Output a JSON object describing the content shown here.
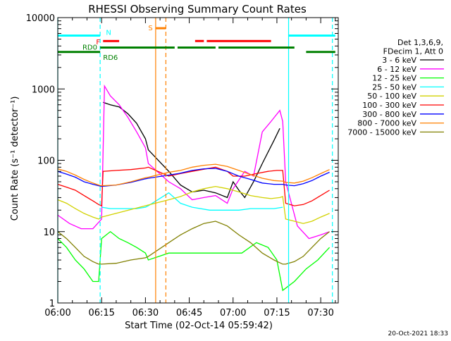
{
  "chart_data": {
    "type": "line",
    "title": "RHESSI Observing Summary Count Rates",
    "xlabel": "Start Time (02-Oct-14 05:59:42)",
    "ylabel": "Count Rate (s⁻¹ detector⁻¹)",
    "y_scale": "log",
    "ylim": [
      1,
      10000
    ],
    "xlim_min": [
      0,
      96
    ],
    "x_ticks": [
      {
        "t": 0,
        "label": "06:00"
      },
      {
        "t": 15,
        "label": "06:15"
      },
      {
        "t": 30,
        "label": "06:30"
      },
      {
        "t": 45,
        "label": "06:45"
      },
      {
        "t": 60,
        "label": "07:00"
      },
      {
        "t": 75,
        "label": "07:15"
      },
      {
        "t": 90,
        "label": "07:30"
      }
    ],
    "y_ticks": [
      {
        "v": 1,
        "label": "1"
      },
      {
        "v": 10,
        "label": "10"
      },
      {
        "v": 100,
        "label": "100"
      },
      {
        "v": 1000,
        "label": "1000"
      },
      {
        "v": 10000,
        "label": "10000"
      }
    ],
    "legend_header": [
      "Det 1,3,6,9,",
      "FDecim 1, Att 0"
    ],
    "legend_placement": "right",
    "series": [
      {
        "name": "3 - 6 keV",
        "color": "#000000",
        "points": [
          [
            15.5,
            650
          ],
          [
            18,
            600
          ],
          [
            21,
            560
          ],
          [
            24,
            450
          ],
          [
            27,
            330
          ],
          [
            30,
            200
          ],
          [
            31,
            140
          ],
          [
            38,
            70
          ],
          [
            42,
            45
          ],
          [
            46,
            36
          ],
          [
            50,
            38
          ],
          [
            54,
            35
          ],
          [
            58,
            30
          ],
          [
            60,
            50
          ],
          [
            62,
            38
          ],
          [
            64,
            30
          ],
          [
            67,
            50
          ],
          [
            70,
            90
          ],
          [
            74,
            190
          ],
          [
            76,
            280
          ]
        ]
      },
      {
        "name": "6 - 12 keV",
        "color": "#ff00ff",
        "points": [
          [
            0,
            17
          ],
          [
            4,
            13
          ],
          [
            8,
            11
          ],
          [
            12,
            11
          ],
          [
            15,
            15
          ],
          [
            16,
            1100
          ],
          [
            18,
            800
          ],
          [
            21,
            600
          ],
          [
            24,
            400
          ],
          [
            27,
            250
          ],
          [
            30,
            150
          ],
          [
            31,
            90
          ],
          [
            38,
            50
          ],
          [
            42,
            40
          ],
          [
            46,
            28
          ],
          [
            50,
            30
          ],
          [
            54,
            32
          ],
          [
            58,
            25
          ],
          [
            60,
            40
          ],
          [
            64,
            70
          ],
          [
            67,
            60
          ],
          [
            70,
            250
          ],
          [
            73,
            350
          ],
          [
            76,
            500
          ],
          [
            77,
            350
          ],
          [
            78,
            50
          ],
          [
            82,
            12
          ],
          [
            86,
            8
          ],
          [
            90,
            9
          ],
          [
            93,
            10
          ]
        ]
      },
      {
        "name": "12 - 25 keV",
        "color": "#00ff00",
        "points": [
          [
            0,
            8
          ],
          [
            3,
            6
          ],
          [
            6,
            4
          ],
          [
            9,
            3
          ],
          [
            12,
            2
          ],
          [
            14,
            2
          ],
          [
            15,
            8
          ],
          [
            18,
            10
          ],
          [
            21,
            8
          ],
          [
            24,
            7
          ],
          [
            27,
            6
          ],
          [
            30,
            5
          ],
          [
            31,
            4
          ],
          [
            38,
            5
          ],
          [
            45,
            5
          ],
          [
            52,
            5
          ],
          [
            59,
            5
          ],
          [
            63,
            5
          ],
          [
            68,
            7
          ],
          [
            72,
            6
          ],
          [
            75,
            4
          ],
          [
            77,
            1.5
          ],
          [
            81,
            2
          ],
          [
            85,
            3
          ],
          [
            89,
            4
          ],
          [
            93,
            6
          ]
        ]
      },
      {
        "name": "25 - 50 keV",
        "color": "#00ffff",
        "points": [
          [
            15,
            22
          ],
          [
            18,
            21
          ],
          [
            21,
            21
          ],
          [
            24,
            21
          ],
          [
            27,
            21
          ],
          [
            30,
            22
          ],
          [
            31,
            23
          ],
          [
            38,
            35
          ],
          [
            42,
            25
          ],
          [
            46,
            22
          ],
          [
            52,
            20
          ],
          [
            58,
            20
          ],
          [
            62,
            20
          ],
          [
            66,
            21
          ],
          [
            70,
            21
          ],
          [
            74,
            21
          ],
          [
            77,
            22
          ]
        ]
      },
      {
        "name": "50 - 100 keV",
        "color": "#d2d200",
        "points": [
          [
            0,
            28
          ],
          [
            3,
            25
          ],
          [
            6,
            21
          ],
          [
            9,
            18
          ],
          [
            12,
            16
          ],
          [
            14,
            15
          ],
          [
            15,
            16
          ],
          [
            38,
            28
          ],
          [
            42,
            31
          ],
          [
            46,
            36
          ],
          [
            50,
            40
          ],
          [
            54,
            43
          ],
          [
            58,
            40
          ],
          [
            62,
            36
          ],
          [
            66,
            32
          ],
          [
            70,
            30
          ],
          [
            73,
            29
          ],
          [
            76,
            30
          ],
          [
            77,
            31
          ],
          [
            78,
            15
          ],
          [
            81,
            14
          ],
          [
            84,
            13
          ],
          [
            87,
            14
          ],
          [
            90,
            16
          ],
          [
            93,
            18
          ]
        ]
      },
      {
        "name": "100 - 300 keV",
        "color": "#ff0000",
        "points": [
          [
            0,
            46
          ],
          [
            3,
            42
          ],
          [
            6,
            38
          ],
          [
            9,
            32
          ],
          [
            12,
            27
          ],
          [
            14,
            24
          ],
          [
            15,
            23
          ],
          [
            15.5,
            70
          ],
          [
            20,
            72
          ],
          [
            25,
            74
          ],
          [
            30,
            78
          ],
          [
            31,
            80
          ],
          [
            38,
            60
          ],
          [
            42,
            65
          ],
          [
            46,
            70
          ],
          [
            50,
            75
          ],
          [
            54,
            80
          ],
          [
            58,
            70
          ],
          [
            60,
            60
          ],
          [
            64,
            60
          ],
          [
            68,
            65
          ],
          [
            72,
            70
          ],
          [
            75,
            72
          ],
          [
            77,
            72
          ],
          [
            78,
            25
          ],
          [
            81,
            23
          ],
          [
            84,
            24
          ],
          [
            87,
            27
          ],
          [
            90,
            32
          ],
          [
            93,
            38
          ]
        ]
      },
      {
        "name": "300 - 800 keV",
        "color": "#0000ff",
        "points": [
          [
            0,
            70
          ],
          [
            3,
            64
          ],
          [
            6,
            58
          ],
          [
            9,
            50
          ],
          [
            12,
            46
          ],
          [
            14,
            44
          ],
          [
            15,
            43
          ],
          [
            20,
            45
          ],
          [
            25,
            49
          ],
          [
            30,
            55
          ],
          [
            31,
            56
          ],
          [
            38,
            62
          ],
          [
            42,
            66
          ],
          [
            46,
            72
          ],
          [
            50,
            76
          ],
          [
            54,
            77
          ],
          [
            58,
            70
          ],
          [
            62,
            60
          ],
          [
            66,
            54
          ],
          [
            70,
            48
          ],
          [
            74,
            46
          ],
          [
            77,
            46
          ],
          [
            78,
            45
          ],
          [
            81,
            44
          ],
          [
            84,
            47
          ],
          [
            87,
            52
          ],
          [
            90,
            60
          ],
          [
            93,
            68
          ]
        ]
      },
      {
        "name": "800 - 7000 keV",
        "color": "#ff8000",
        "points": [
          [
            0,
            76
          ],
          [
            3,
            70
          ],
          [
            6,
            62
          ],
          [
            9,
            54
          ],
          [
            12,
            48
          ],
          [
            14,
            45
          ],
          [
            15,
            44
          ],
          [
            20,
            45
          ],
          [
            25,
            50
          ],
          [
            30,
            57
          ],
          [
            31,
            58
          ],
          [
            38,
            68
          ],
          [
            42,
            72
          ],
          [
            46,
            80
          ],
          [
            50,
            85
          ],
          [
            54,
            88
          ],
          [
            58,
            82
          ],
          [
            62,
            72
          ],
          [
            66,
            63
          ],
          [
            70,
            56
          ],
          [
            74,
            52
          ],
          [
            77,
            51
          ],
          [
            78,
            49
          ],
          [
            81,
            48
          ],
          [
            84,
            51
          ],
          [
            87,
            57
          ],
          [
            90,
            65
          ],
          [
            93,
            74
          ]
        ]
      },
      {
        "name": "7000 - 15000 keV",
        "color": "#808000",
        "points": [
          [
            0,
            10
          ],
          [
            3,
            8
          ],
          [
            6,
            6
          ],
          [
            9,
            4.5
          ],
          [
            12,
            3.8
          ],
          [
            14,
            3.5
          ],
          [
            15,
            3.5
          ],
          [
            20,
            3.6
          ],
          [
            25,
            4
          ],
          [
            30,
            4.3
          ],
          [
            31,
            4.5
          ],
          [
            38,
            7
          ],
          [
            42,
            9
          ],
          [
            46,
            11
          ],
          [
            50,
            13
          ],
          [
            54,
            14
          ],
          [
            58,
            12
          ],
          [
            62,
            9
          ],
          [
            66,
            7
          ],
          [
            70,
            5
          ],
          [
            74,
            4
          ],
          [
            77,
            3.5
          ],
          [
            78,
            3.5
          ],
          [
            81,
            3.8
          ],
          [
            84,
            4.5
          ],
          [
            87,
            6
          ],
          [
            90,
            8
          ],
          [
            93,
            10
          ]
        ]
      }
    ],
    "flag_bars": [
      {
        "name": "N",
        "color": "#00ffff",
        "level": 5600,
        "segments": [
          [
            0,
            14.5
          ],
          [
            79,
            95
          ]
        ]
      },
      {
        "name": "S",
        "color": "#ff8000",
        "level": 7100,
        "segments": [
          [
            33.5,
            37
          ]
        ]
      },
      {
        "name": "F",
        "color": "#ff0000",
        "level": 4700,
        "segments": [
          [
            15.5,
            21
          ],
          [
            47,
            50
          ],
          [
            51,
            73
          ]
        ]
      },
      {
        "name": "RD0",
        "color": "#008000",
        "level": 3800,
        "segments": [
          [
            14.5,
            40
          ],
          [
            41,
            54
          ],
          [
            55,
            81
          ]
        ]
      },
      {
        "name": "RD6",
        "color": "#008000",
        "level": 3300,
        "segments": [
          [
            0,
            14.5
          ],
          [
            85,
            95
          ]
        ]
      }
    ],
    "vlines": [
      {
        "t": 0,
        "color": "#00ffff",
        "style": "solid"
      },
      {
        "t": 14.5,
        "color": "#00ffff",
        "style": "dashed"
      },
      {
        "t": 33.5,
        "color": "#ff8000",
        "style": "solid"
      },
      {
        "t": 37,
        "color": "#ff8000",
        "style": "dashed"
      },
      {
        "t": 79,
        "color": "#00ffff",
        "style": "solid"
      },
      {
        "t": 94,
        "color": "#00ffff",
        "style": "dashed"
      }
    ],
    "grid": false
  },
  "footer": {
    "timestamp": "20-Oct-2021 18:33"
  }
}
